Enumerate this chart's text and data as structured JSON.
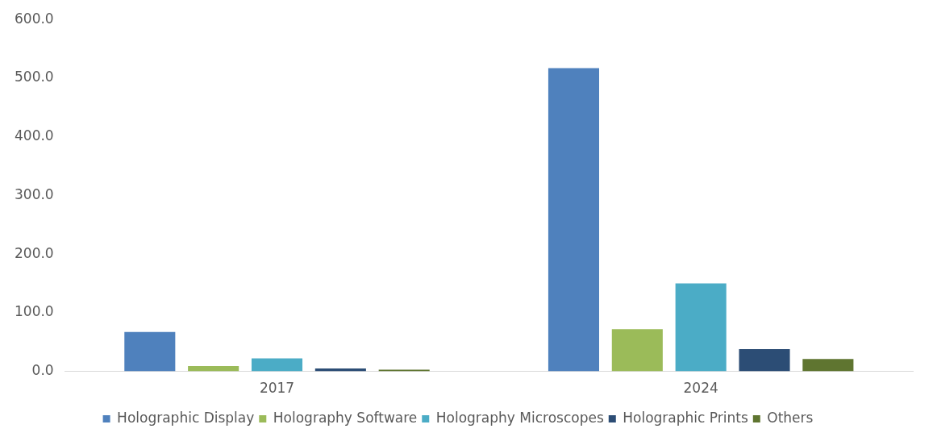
{
  "chart_data": {
    "type": "bar",
    "categories": [
      "2017",
      "2024"
    ],
    "series": [
      {
        "name": "Holographic Display",
        "color": "#4f81bd",
        "values": [
          67,
          517
        ]
      },
      {
        "name": "Holography Software",
        "color": "#9bbb59",
        "values": [
          9,
          72
        ]
      },
      {
        "name": "Holography Microscopes",
        "color": "#4bacc6",
        "values": [
          22,
          150
        ]
      },
      {
        "name": "Holographic Prints",
        "color": "#2c4d75",
        "values": [
          5,
          38
        ]
      },
      {
        "name": "Others",
        "color": "#5f7530",
        "values": [
          3,
          21
        ]
      }
    ],
    "ylim": [
      0,
      600
    ],
    "yticks": [
      {
        "value": 0,
        "label": "0.0"
      },
      {
        "value": 100,
        "label": "100.0"
      },
      {
        "value": 200,
        "label": "200.0"
      },
      {
        "value": 300,
        "label": "300.0"
      },
      {
        "value": 400,
        "label": "400.0"
      },
      {
        "value": 500,
        "label": "500.0"
      },
      {
        "value": 600,
        "label": "600.0"
      }
    ],
    "grid": false,
    "legend": "bottom"
  }
}
